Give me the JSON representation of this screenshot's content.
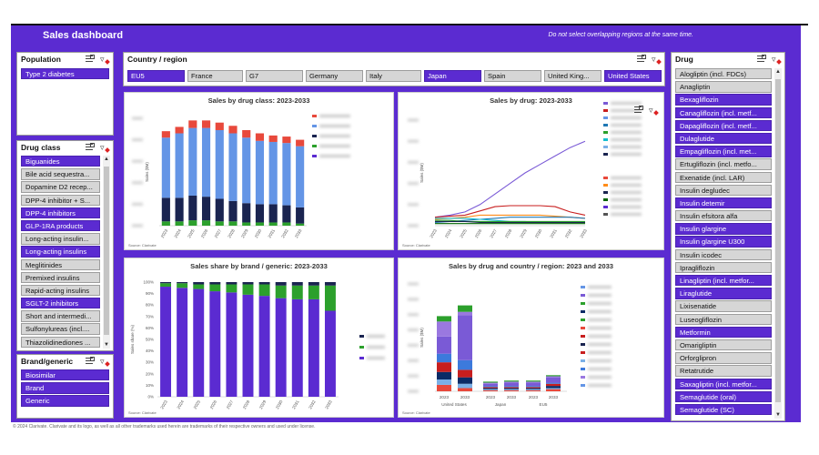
{
  "header": {
    "title": "Sales dashboard",
    "note": "Do not select overlapping regions at the same time."
  },
  "population": {
    "title": "Population",
    "items": [
      {
        "label": "Type 2 diabetes",
        "selected": true
      }
    ]
  },
  "drug_class": {
    "title": "Drug class",
    "items": [
      {
        "label": "Biguanides",
        "selected": true
      },
      {
        "label": "Bile acid sequestra...",
        "selected": false
      },
      {
        "label": "Dopamine D2 recep...",
        "selected": false
      },
      {
        "label": "DPP-4 inhibitor + S...",
        "selected": false
      },
      {
        "label": "DPP-4 inhibitors",
        "selected": true
      },
      {
        "label": "GLP-1RA products",
        "selected": true
      },
      {
        "label": "Long-acting insulin...",
        "selected": false
      },
      {
        "label": "Long-acting insulins",
        "selected": true
      },
      {
        "label": "Meglitinides",
        "selected": false
      },
      {
        "label": "Premixed insulins",
        "selected": false
      },
      {
        "label": "Rapid-acting insulins",
        "selected": false
      },
      {
        "label": "SGLT-2 inhibitors",
        "selected": true
      },
      {
        "label": "Short and intermedi...",
        "selected": false
      },
      {
        "label": "Sulfonylureas (incl....",
        "selected": false
      },
      {
        "label": "Thiazolidinediones ...",
        "selected": false
      }
    ]
  },
  "brand_generic": {
    "title": "Brand/generic",
    "items": [
      {
        "label": "Biosimilar",
        "selected": true
      },
      {
        "label": "Brand",
        "selected": true
      },
      {
        "label": "Generic",
        "selected": true
      }
    ]
  },
  "country": {
    "title": "Country / region",
    "items": [
      {
        "label": "EU5",
        "selected": true
      },
      {
        "label": "France",
        "selected": false
      },
      {
        "label": "G7",
        "selected": false
      },
      {
        "label": "Germany",
        "selected": false
      },
      {
        "label": "Italy",
        "selected": false
      },
      {
        "label": "Japan",
        "selected": true
      },
      {
        "label": "Spain",
        "selected": false
      },
      {
        "label": "United King...",
        "selected": false
      },
      {
        "label": "United States",
        "selected": true
      }
    ]
  },
  "drug": {
    "title": "Drug",
    "items": [
      {
        "label": "Alogliptin (incl. FDCs)",
        "selected": false
      },
      {
        "label": "Anagliptin",
        "selected": false
      },
      {
        "label": "Bexagliflozin",
        "selected": true
      },
      {
        "label": "Canagliflozin (incl. metf...",
        "selected": true
      },
      {
        "label": "Dapagliflozin (incl. metf...",
        "selected": true
      },
      {
        "label": "Dulaglutide",
        "selected": true
      },
      {
        "label": "Empagliflozin (incl. met...",
        "selected": true
      },
      {
        "label": "Ertugliflozin (incl. metfo...",
        "selected": false
      },
      {
        "label": "Exenatide (incl. LAR)",
        "selected": false
      },
      {
        "label": "Insulin degludec",
        "selected": false
      },
      {
        "label": "Insulin detemir",
        "selected": true
      },
      {
        "label": "Insulin efsitora alfa",
        "selected": false
      },
      {
        "label": "Insulin glargine",
        "selected": true
      },
      {
        "label": "Insulin glargine U300",
        "selected": true
      },
      {
        "label": "Insulin icodec",
        "selected": false
      },
      {
        "label": "Ipragliflozin",
        "selected": false
      },
      {
        "label": "Linagliptin (incl. metfor...",
        "selected": true
      },
      {
        "label": "Liraglutide",
        "selected": true
      },
      {
        "label": "Lixisenatide",
        "selected": false
      },
      {
        "label": "Luseogliflozin",
        "selected": false
      },
      {
        "label": "Metformin",
        "selected": true
      },
      {
        "label": "Omarigliptin",
        "selected": false
      },
      {
        "label": "Orforglipron",
        "selected": false
      },
      {
        "label": "Retatrutide",
        "selected": false
      },
      {
        "label": "Saxagliptin (incl. metfor...",
        "selected": true
      },
      {
        "label": "Semaglutide (oral)",
        "selected": true
      },
      {
        "label": "Semaglutide (SC)",
        "selected": true
      }
    ]
  },
  "charts": {
    "c1": {
      "title": "Sales by drug class: 2023-2033",
      "ylabel": "Sales ($M)",
      "source": "Source: Clarivate"
    },
    "c2": {
      "title": "Sales by drug: 2023-2033",
      "ylabel": "Sales ($M)",
      "source": "Source: Clarivate"
    },
    "c3": {
      "title": "Sales share by brand / generic: 2023-2033",
      "ylabel": "Sales share (%)",
      "source": "Source: Clarivate"
    },
    "c4": {
      "title": "Sales by drug and country / region: 2023 and 2033",
      "ylabel": "Sales ($M)",
      "source": "Source: Clarivate"
    }
  },
  "footer": "© 2024 Clarivate. Clarivate and its logo, as well as all other trademarks used herein are trademarks of their respective owners and used under license.",
  "chart_data": [
    {
      "type": "bar",
      "title": "Sales by drug class: 2023-2033",
      "ylabel": "Sales ($M)",
      "categories": [
        "2023",
        "2024",
        "2025",
        "2026",
        "2027",
        "2028",
        "2029",
        "2030",
        "2031",
        "2032",
        "2033"
      ],
      "series": [
        {
          "values": [
            4,
            4,
            5,
            5,
            4,
            4,
            3,
            3,
            3,
            3,
            2
          ],
          "color": "#2ca02c"
        },
        {
          "values": [
            22,
            22,
            23,
            22,
            21,
            19,
            18,
            17,
            17,
            16,
            15
          ],
          "color": "#1a2450"
        },
        {
          "values": [
            56,
            60,
            63,
            64,
            64,
            63,
            61,
            59,
            58,
            58,
            57
          ],
          "color": "#6495e6"
        },
        {
          "values": [
            6,
            6,
            7,
            7,
            7,
            7,
            7,
            7,
            6,
            6,
            6
          ],
          "color": "#e8493c"
        }
      ],
      "ylim": [
        0,
        100
      ]
    },
    {
      "type": "line",
      "title": "Sales by drug: 2023-2033",
      "ylabel": "Sales ($M)",
      "x": [
        "2023",
        "2024",
        "2025",
        "2026",
        "2027",
        "2028",
        "2029",
        "2030",
        "2031",
        "2032",
        "2033"
      ],
      "series": [
        {
          "values": [
            8,
            10,
            13,
            20,
            30,
            40,
            50,
            58,
            66,
            74,
            80
          ],
          "color": "#7a5ad6"
        },
        {
          "values": [
            8,
            9,
            10,
            14,
            18,
            19,
            19,
            19,
            18,
            13,
            10
          ],
          "color": "#c81e1e"
        },
        {
          "values": [
            6,
            7,
            8,
            10,
            10,
            10,
            10,
            10,
            9,
            8,
            7
          ],
          "color": "#ff8c1a"
        },
        {
          "values": [
            3,
            4,
            5,
            6,
            7,
            8,
            8,
            8,
            8,
            8,
            7
          ],
          "color": "#1f78b4"
        },
        {
          "values": [
            7,
            7,
            7,
            6,
            5,
            4,
            4,
            3,
            3,
            3,
            3
          ],
          "color": "#17becf"
        },
        {
          "values": [
            5,
            5,
            4,
            4,
            4,
            4,
            4,
            4,
            4,
            4,
            4
          ],
          "color": "#2ca02c"
        },
        {
          "values": [
            4,
            4,
            4,
            3,
            3,
            3,
            3,
            3,
            3,
            3,
            3
          ],
          "color": "#1a2450"
        },
        {
          "values": [
            2,
            2,
            2,
            2,
            2,
            2,
            2,
            2,
            2,
            2,
            2
          ],
          "color": "#006400"
        }
      ],
      "ylim": [
        0,
        100
      ]
    },
    {
      "type": "bar",
      "title": "Sales share by brand / generic: 2023-2033",
      "ylabel": "Sales share (%)",
      "categories": [
        "2023",
        "2024",
        "2025",
        "2026",
        "2027",
        "2028",
        "2029",
        "2030",
        "2031",
        "2032",
        "2033"
      ],
      "series": [
        {
          "values": [
            96,
            95,
            94,
            92,
            91,
            89,
            88,
            86,
            85,
            85,
            75
          ],
          "color": "#5b2bd1"
        },
        {
          "values": [
            3,
            4,
            4,
            6,
            7,
            9,
            10,
            11,
            12,
            12,
            22
          ],
          "color": "#2ca02c"
        },
        {
          "values": [
            1,
            1,
            2,
            2,
            2,
            2,
            2,
            3,
            3,
            3,
            3
          ],
          "color": "#1a2450"
        }
      ],
      "ylim": [
        0,
        100
      ],
      "yticks": [
        "0%",
        "10%",
        "20%",
        "30%",
        "40%",
        "50%",
        "60%",
        "70%",
        "80%",
        "90%",
        "100%"
      ]
    },
    {
      "type": "bar",
      "title": "Sales by drug and country / region: 2023 and 2033",
      "ylabel": "Sales ($M)",
      "groups": [
        "United States",
        "Japan",
        "EU5"
      ],
      "categories": [
        "2023",
        "2033",
        "2023",
        "2033",
        "2023",
        "2033"
      ],
      "series": [
        {
          "values": [
            6,
            3,
            1,
            1,
            1,
            2
          ],
          "color": "#e8493c"
        },
        {
          "values": [
            5,
            4,
            1,
            1,
            1,
            1
          ],
          "color": "#7ab0e6"
        },
        {
          "values": [
            7,
            6,
            1,
            1,
            1,
            2
          ],
          "color": "#0b2b66"
        },
        {
          "values": [
            9,
            7,
            1,
            1,
            1,
            2
          ],
          "color": "#c81e1e"
        },
        {
          "values": [
            8,
            9,
            1,
            1,
            1,
            1
          ],
          "color": "#3c7adc"
        },
        {
          "values": [
            16,
            42,
            2,
            3,
            3,
            5
          ],
          "color": "#7a5ad6"
        },
        {
          "values": [
            14,
            3,
            1,
            1,
            1,
            1
          ],
          "color": "#9a78e0"
        },
        {
          "values": [
            5,
            6,
            1,
            1,
            1,
            1
          ],
          "color": "#2ca02c"
        }
      ],
      "ylim": [
        0,
        100
      ]
    }
  ]
}
